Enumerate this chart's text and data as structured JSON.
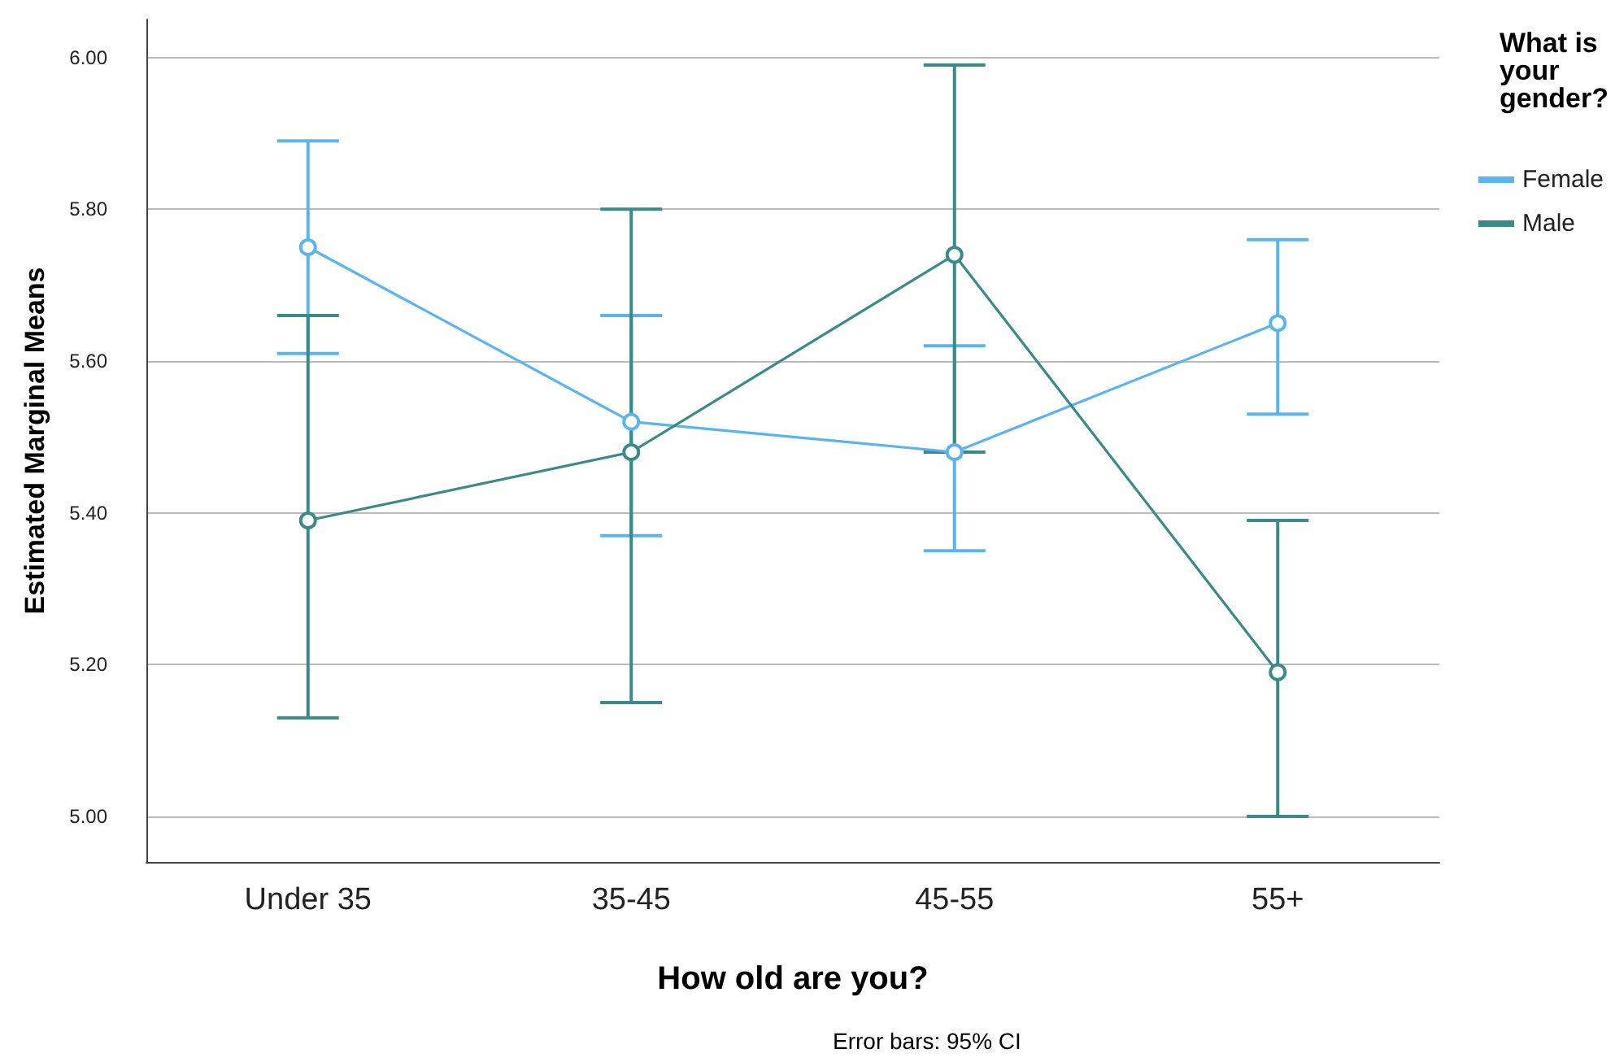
{
  "chart_data": {
    "type": "line",
    "xlabel": "How old are you?",
    "ylabel": "Estimated Marginal Means",
    "legend_title": "What is your gender?",
    "annotations": [
      "Error bars: 95% CI"
    ],
    "categories": [
      "Under 35",
      "35-45",
      "45-55",
      "55+"
    ],
    "series": [
      {
        "name": "Female",
        "color": "#5ab4f0",
        "values": [
          5.75,
          5.52,
          5.48,
          5.65
        ],
        "errors": [
          [
            5.61,
            5.89
          ],
          [
            5.37,
            5.66
          ],
          [
            5.35,
            5.62
          ],
          [
            5.53,
            5.76
          ]
        ]
      },
      {
        "name": "Male",
        "color": "#3a8a88",
        "values": [
          5.39,
          5.48,
          5.74,
          5.19
        ],
        "errors": [
          [
            5.13,
            5.66
          ],
          [
            5.15,
            5.8
          ],
          [
            5.48,
            5.99
          ],
          [
            5.0,
            5.39
          ]
        ]
      }
    ],
    "ylim": [
      4.94,
      6.05
    ],
    "yticks": [
      {
        "value": 5,
        "label": "5.00"
      },
      {
        "value": 5.2,
        "label": "5.20"
      },
      {
        "value": 5.4,
        "label": "5.40"
      },
      {
        "value": 5.6,
        "label": "5.60"
      },
      {
        "value": 5.8,
        "label": "5.80"
      },
      {
        "value": 6,
        "label": "6.00"
      }
    ],
    "grid": "y",
    "legend": "top right",
    "marker": "circle",
    "line_style": "solid"
  }
}
